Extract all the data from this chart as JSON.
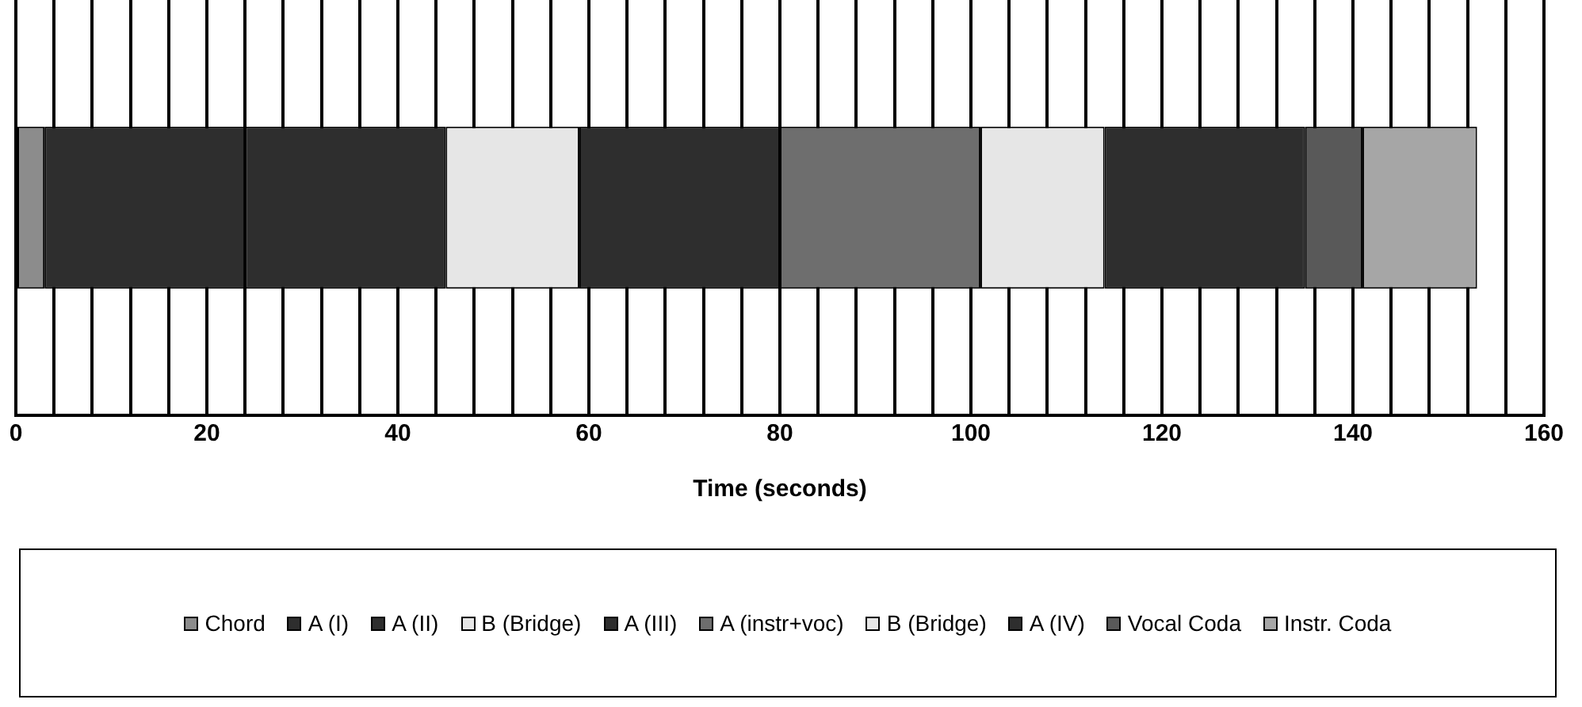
{
  "chart_data": {
    "type": "bar",
    "orientation": "horizontal",
    "stacked": true,
    "categories": [
      null
    ],
    "xlabel": "Time (seconds)",
    "xlim": [
      0,
      160
    ],
    "xticks": [
      0,
      {
        "value": 4,
        "label": null
      },
      {
        "value": 8,
        "label": null
      },
      {
        "value": 12,
        "label": null
      },
      {
        "value": 16,
        "label": null
      },
      20,
      {
        "value": 24,
        "label": null
      },
      {
        "value": 28,
        "label": null
      },
      {
        "value": 32,
        "label": null
      },
      {
        "value": 36,
        "label": null
      },
      40,
      {
        "value": 44,
        "label": null
      },
      {
        "value": 48,
        "label": null
      },
      {
        "value": 52,
        "label": null
      },
      {
        "value": 56,
        "label": null
      },
      60,
      {
        "value": 64,
        "label": null
      },
      {
        "value": 68,
        "label": null
      },
      {
        "value": 72,
        "label": null
      },
      {
        "value": 76,
        "label": null
      },
      80,
      {
        "value": 84,
        "label": null
      },
      {
        "value": 88,
        "label": null
      },
      {
        "value": 92,
        "label": null
      },
      {
        "value": 96,
        "label": null
      },
      100,
      {
        "value": 104,
        "label": null
      },
      {
        "value": 108,
        "label": null
      },
      {
        "value": 112,
        "label": null
      },
      {
        "value": 116,
        "label": null
      },
      120,
      {
        "value": 124,
        "label": null
      },
      {
        "value": 128,
        "label": null
      },
      {
        "value": 132,
        "label": null
      },
      {
        "value": 136,
        "label": null
      },
      140,
      {
        "value": 144,
        "label": null
      },
      {
        "value": 148,
        "label": null
      },
      {
        "value": 152,
        "label": null
      },
      {
        "value": 156,
        "label": null
      },
      160
    ],
    "grid": "x",
    "legend": "bottom",
    "series": [
      {
        "name": "Chord",
        "color": "#8c8c8c",
        "values": [
          3
        ]
      },
      {
        "name": "A (I)",
        "color": "#2e2e2e",
        "values": [
          21
        ]
      },
      {
        "name": "A (II)",
        "color": "#2e2e2e",
        "values": [
          21
        ]
      },
      {
        "name": "B (Bridge)",
        "color": "#e6e6e6",
        "values": [
          14
        ]
      },
      {
        "name": "A (III)",
        "color": "#2e2e2e",
        "values": [
          21
        ]
      },
      {
        "name": "A (instr+voc)",
        "color": "#6e6e6e",
        "values": [
          21
        ]
      },
      {
        "name": "B (Bridge)",
        "color": "#e6e6e6",
        "values": [
          13
        ]
      },
      {
        "name": "A (IV)",
        "color": "#2e2e2e",
        "values": [
          21
        ]
      },
      {
        "name": "Vocal Coda",
        "color": "#595959",
        "values": [
          6
        ]
      },
      {
        "name": "Instr. Coda",
        "color": "#a6a6a6",
        "values": [
          12
        ]
      }
    ]
  }
}
